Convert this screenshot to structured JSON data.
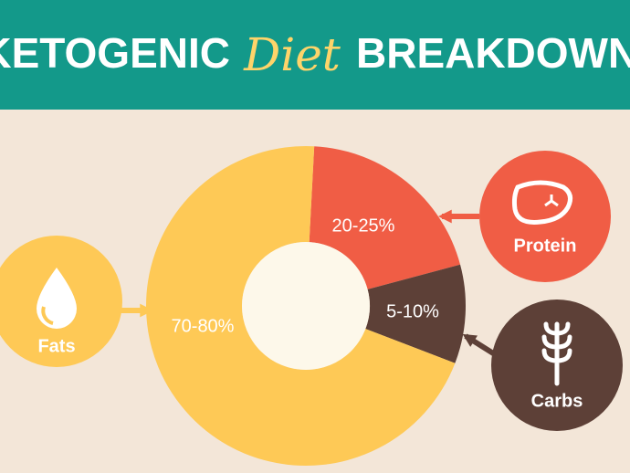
{
  "chart_data": {
    "type": "pie",
    "title": [
      "KETOGENIC",
      "Diet",
      "BREAKDOWN"
    ],
    "categories": [
      "Protein",
      "Carbs",
      "Fats"
    ],
    "values": [
      20,
      10,
      70
    ],
    "value_labels": [
      "20-25%",
      "5-10%",
      "70-80%"
    ],
    "colors": [
      "#f05d45",
      "#5d4037",
      "#fec956"
    ],
    "donut": true
  }
}
